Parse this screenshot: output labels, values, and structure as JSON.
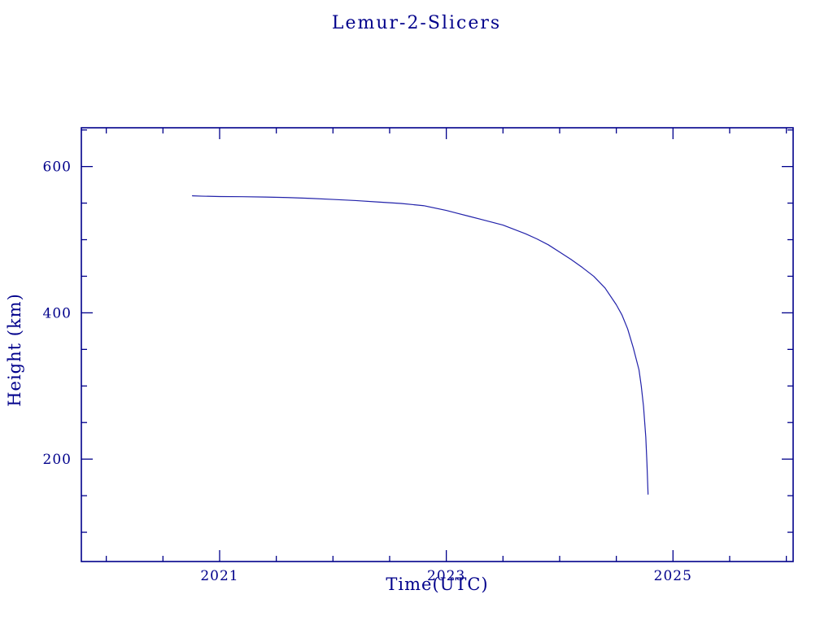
{
  "page": {
    "background": "#ffffff"
  },
  "colors": {
    "ink": "#00008b",
    "line": "#2222aa"
  },
  "chart_data": {
    "type": "line",
    "title": "Lemur-2-Slicers",
    "xlabel": "Time(UTC)",
    "ylabel": "Height (km)",
    "xlim": [
      2019.78,
      2026.06
    ],
    "ylim": [
      60,
      653
    ],
    "x_major_ticks": [
      2021,
      2023,
      2025
    ],
    "x_minor_step": 0.5,
    "y_major_ticks": [
      200,
      400,
      600
    ],
    "y_minor_step": 50,
    "grid": false,
    "legend": null,
    "series": [
      {
        "name": "Lemur-2-Slicers height",
        "x": [
          2020.76,
          2020.85,
          2021.0,
          2021.2,
          2021.4,
          2021.6,
          2021.8,
          2022.0,
          2022.2,
          2022.4,
          2022.6,
          2022.8,
          2023.0,
          2023.1,
          2023.2,
          2023.3,
          2023.4,
          2023.5,
          2023.6,
          2023.7,
          2023.8,
          2023.9,
          2024.0,
          2024.1,
          2024.2,
          2024.3,
          2024.4,
          2024.5,
          2024.55,
          2024.6,
          2024.65,
          2024.7,
          2024.72,
          2024.74,
          2024.76,
          2024.77,
          2024.78
        ],
        "y": [
          560,
          559.5,
          559,
          558.8,
          558.3,
          557.6,
          556.5,
          555,
          553.5,
          551.5,
          549.5,
          546.5,
          540,
          536,
          532,
          528,
          524,
          520,
          514,
          508,
          501,
          493,
          483,
          473,
          462,
          450,
          434,
          411,
          397,
          378,
          352,
          322,
          300,
          272,
          230,
          195,
          152
        ]
      }
    ]
  }
}
